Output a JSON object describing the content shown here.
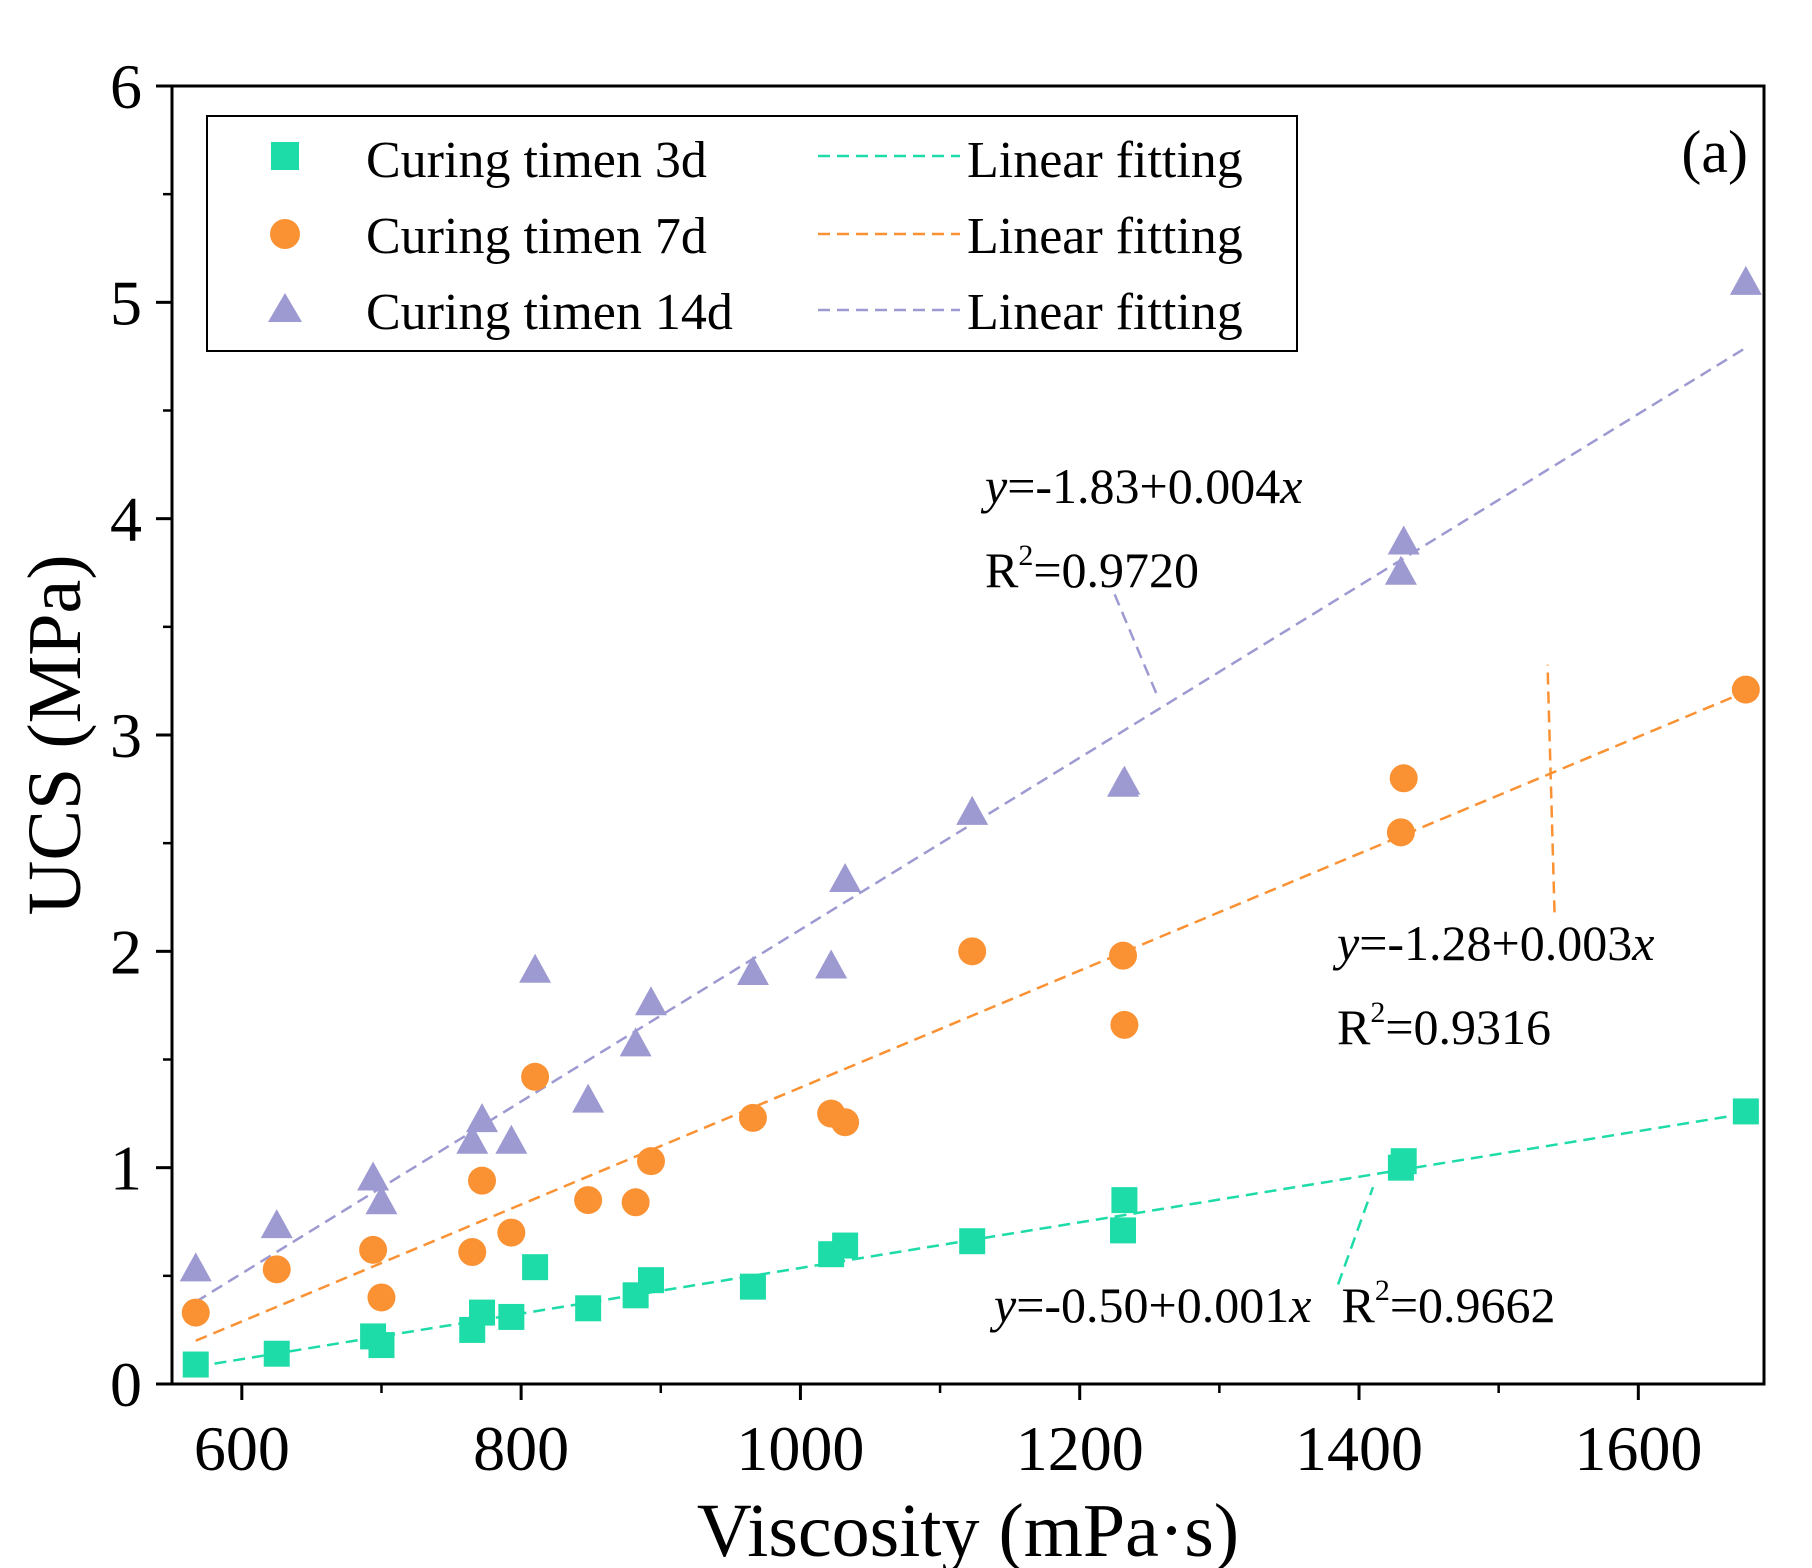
{
  "chart_data": {
    "type": "scatter",
    "panel_label": "(a)",
    "xlabel": "Viscosity (mPa·s)",
    "ylabel": "UCS (MPa)",
    "xlim": [
      550,
      1690
    ],
    "ylim": [
      0,
      6
    ],
    "xticks": [
      600,
      800,
      1000,
      1200,
      1400,
      1600
    ],
    "xtick_labels": [
      "600",
      "800",
      "1000",
      "1200",
      "1400",
      "1600"
    ],
    "yticks": [
      0,
      1,
      2,
      3,
      4,
      5,
      6
    ],
    "ytick_labels": [
      "0",
      "1",
      "2",
      "3",
      "4",
      "5",
      "6"
    ],
    "legend": {
      "position": "top-left",
      "entries": [
        {
          "label": "Curing timen 3d",
          "marker": "square",
          "color": "#1EDCA8"
        },
        {
          "label": "Curing timen 7d",
          "marker": "circle",
          "color": "#FA9234"
        },
        {
          "label": "Curing timen 14d",
          "marker": "triangle",
          "color": "#9D9AD2"
        },
        {
          "label": "Linear fitting",
          "style": "dashed",
          "color": "#1EDCA8"
        },
        {
          "label": "Linear fitting",
          "style": "dashed",
          "color": "#FA9234"
        },
        {
          "label": "Linear fitting",
          "style": "dashed",
          "color": "#9D9AD2"
        }
      ]
    },
    "series": [
      {
        "name": "Curing timen 3d",
        "marker": "square",
        "color": "#1EDCA8",
        "x": [
          567,
          625,
          694,
          700,
          765,
          772,
          793,
          810,
          848,
          882,
          893,
          966,
          1022,
          1032,
          1123,
          1231,
          1232,
          1430,
          1432,
          1677
        ],
        "y": [
          0.09,
          0.14,
          0.22,
          0.18,
          0.25,
          0.33,
          0.31,
          0.54,
          0.35,
          0.41,
          0.48,
          0.45,
          0.6,
          0.64,
          0.66,
          0.71,
          0.85,
          1.0,
          1.03,
          1.26
        ],
        "fit": {
          "intercept": -0.5,
          "slope": 0.001,
          "x_range": [
            567,
            1677
          ],
          "y_range": [
            0.08,
            1.25
          ],
          "equation": "y=-0.50+0.001x",
          "r2": "R2=0.9662"
        }
      },
      {
        "name": "Curing timen 7d",
        "marker": "circle",
        "color": "#FA9234",
        "x": [
          567,
          625,
          694,
          700,
          765,
          772,
          793,
          810,
          848,
          882,
          893,
          966,
          1022,
          1032,
          1123,
          1231,
          1232,
          1430,
          1432,
          1677
        ],
        "y": [
          0.33,
          0.53,
          0.62,
          0.4,
          0.61,
          0.94,
          0.7,
          1.42,
          0.85,
          0.84,
          1.03,
          1.23,
          1.25,
          1.21,
          2.0,
          1.98,
          1.66,
          2.55,
          2.8,
          3.21
        ],
        "fit": {
          "intercept": -1.28,
          "slope": 0.003,
          "x_range": [
            567,
            1677
          ],
          "y_range": [
            0.2,
            3.2
          ],
          "equation": "y=-1.28+0.003x",
          "r2": "R2=0.9316"
        }
      },
      {
        "name": "Curing timen 14d",
        "marker": "triangle",
        "color": "#9D9AD2",
        "x": [
          567,
          625,
          694,
          700,
          765,
          772,
          793,
          810,
          848,
          882,
          893,
          966,
          1022,
          1032,
          1123,
          1231,
          1232,
          1430,
          1432,
          1677
        ],
        "y": [
          0.53,
          0.73,
          0.95,
          0.84,
          1.12,
          1.22,
          1.12,
          1.91,
          1.31,
          1.57,
          1.76,
          1.9,
          1.93,
          2.33,
          2.64,
          2.77,
          2.78,
          3.75,
          3.89,
          5.09
        ],
        "fit": {
          "intercept": -1.83,
          "slope": 0.004,
          "x_range": [
            567,
            1677
          ],
          "y_range": [
            0.38,
            4.79
          ],
          "equation": "y=-1.83+0.004x",
          "r2": "R2=0.9720"
        }
      }
    ],
    "annotations": [
      {
        "series": 2,
        "eq_prefix": "y",
        "eq_rest": "=-1.83+0.004",
        "eq_suffix": "x",
        "r_base": "R",
        "r_sup": "2",
        "r_value": "=0.9720"
      },
      {
        "series": 1,
        "eq_prefix": "y",
        "eq_rest": "=-1.28+0.003",
        "eq_suffix": "x",
        "r_base": "R",
        "r_sup": "2",
        "r_value": "=0.9316"
      },
      {
        "series": 0,
        "eq_prefix": "y",
        "eq_rest": "=-0.50+0.001",
        "eq_suffix": "x",
        "r_base": "R",
        "r_sup": "2",
        "r_value": "=0.9662"
      }
    ]
  }
}
